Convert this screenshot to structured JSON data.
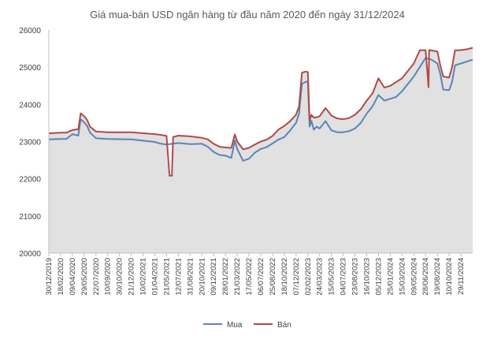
{
  "chart_data": {
    "type": "line",
    "title": "Giá mua-bán  USD ngân hàng từ đầu năm 2020  đến ngày 31/12/2024",
    "xlabel": "",
    "ylabel": "",
    "ylim": [
      20000,
      26000
    ],
    "yticks": [
      "20000",
      "21000",
      "22000",
      "23000",
      "24000",
      "25000",
      "26000"
    ],
    "x_tick_labels": [
      "30/12/2019",
      "18/02/2020",
      "09/04/2020",
      "29/05/2020",
      "22/07/2020",
      "10/09/2020",
      "30/10/2020",
      "21/12/2020",
      "10/02/2021",
      "01/04/2021",
      "21/05/2021",
      "12/07/2021",
      "31/08/2021",
      "20/10/2021",
      "09/12/2021",
      "28/01/2022",
      "21/03/2022",
      "17/05/2022",
      "06/07/2022",
      "25/08/2022",
      "18/10/2022",
      "07/12/2022",
      "02/02/2023",
      "24/03/2023",
      "15/05/2023",
      "04/07/2023",
      "23/08/2023",
      "16/10/2023",
      "05/12/2023",
      "25/01/2024",
      "15/03/2024",
      "09/05/2024",
      "28/06/2024",
      "19/08/2024",
      "10/10/2024",
      "29/11/2024"
    ],
    "grid": false,
    "legend_position": "bottom",
    "series": [
      {
        "name": "Mua",
        "color": "#5b84b5",
        "points": [
          [
            0,
            23060
          ],
          [
            2,
            23070
          ],
          [
            3,
            23070
          ],
          [
            4,
            23200
          ],
          [
            5,
            23160
          ],
          [
            5.4,
            23600
          ],
          [
            6,
            23520
          ],
          [
            6.5,
            23420
          ],
          [
            7,
            23240
          ],
          [
            8,
            23090
          ],
          [
            10,
            23070
          ],
          [
            14,
            23060
          ],
          [
            18,
            22990
          ],
          [
            19,
            22940
          ],
          [
            20,
            22920
          ],
          [
            22,
            22960
          ],
          [
            24,
            22930
          ],
          [
            26,
            22940
          ],
          [
            27,
            22860
          ],
          [
            28,
            22720
          ],
          [
            29,
            22640
          ],
          [
            30,
            22620
          ],
          [
            31,
            22560
          ],
          [
            31.6,
            23030
          ],
          [
            32,
            22800
          ],
          [
            33,
            22480
          ],
          [
            34,
            22540
          ],
          [
            35,
            22700
          ],
          [
            36,
            22800
          ],
          [
            37,
            22850
          ],
          [
            38,
            22950
          ],
          [
            39,
            23050
          ],
          [
            40,
            23120
          ],
          [
            41,
            23300
          ],
          [
            42,
            23500
          ],
          [
            42.5,
            23750
          ],
          [
            43,
            24550
          ],
          [
            43.6,
            24600
          ],
          [
            44,
            24620
          ],
          [
            44.3,
            23400
          ],
          [
            44.6,
            23560
          ],
          [
            45,
            23320
          ],
          [
            45.5,
            23400
          ],
          [
            46,
            23350
          ],
          [
            47,
            23550
          ],
          [
            48,
            23300
          ],
          [
            49,
            23250
          ],
          [
            50,
            23250
          ],
          [
            51,
            23280
          ],
          [
            52,
            23350
          ],
          [
            53,
            23500
          ],
          [
            54,
            23750
          ],
          [
            55,
            23950
          ],
          [
            55.5,
            24100
          ],
          [
            56,
            24250
          ],
          [
            57,
            24100
          ],
          [
            58,
            24150
          ],
          [
            59,
            24200
          ],
          [
            60,
            24350
          ],
          [
            61,
            24550
          ],
          [
            62,
            24750
          ],
          [
            63,
            25000
          ],
          [
            64,
            25250
          ],
          [
            65,
            25200
          ],
          [
            66,
            25100
          ],
          [
            66.5,
            24820
          ],
          [
            67,
            24400
          ],
          [
            68,
            24380
          ],
          [
            68.5,
            24600
          ],
          [
            69,
            25050
          ],
          [
            70,
            25100
          ],
          [
            71,
            25150
          ],
          [
            72,
            25200
          ]
        ]
      },
      {
        "name": "Bán",
        "color": "#b04a48",
        "points": [
          [
            0,
            23220
          ],
          [
            2,
            23240
          ],
          [
            3,
            23240
          ],
          [
            4,
            23310
          ],
          [
            5,
            23330
          ],
          [
            5.4,
            23760
          ],
          [
            6,
            23680
          ],
          [
            6.5,
            23580
          ],
          [
            7,
            23400
          ],
          [
            8,
            23270
          ],
          [
            10,
            23250
          ],
          [
            14,
            23250
          ],
          [
            18,
            23200
          ],
          [
            19,
            23180
          ],
          [
            20,
            23150
          ],
          [
            20.5,
            22080
          ],
          [
            20.9,
            22080
          ],
          [
            21.1,
            23120
          ],
          [
            22,
            23160
          ],
          [
            24,
            23140
          ],
          [
            26,
            23100
          ],
          [
            27,
            23060
          ],
          [
            28,
            22940
          ],
          [
            29,
            22860
          ],
          [
            30,
            22840
          ],
          [
            31,
            22830
          ],
          [
            31.6,
            23190
          ],
          [
            32,
            23000
          ],
          [
            33,
            22790
          ],
          [
            34,
            22830
          ],
          [
            35,
            22920
          ],
          [
            36,
            23000
          ],
          [
            37,
            23050
          ],
          [
            38,
            23150
          ],
          [
            39,
            23320
          ],
          [
            40,
            23420
          ],
          [
            41,
            23550
          ],
          [
            42,
            23720
          ],
          [
            42.5,
            23950
          ],
          [
            43,
            24850
          ],
          [
            43.6,
            24880
          ],
          [
            44,
            24870
          ],
          [
            44.3,
            23560
          ],
          [
            44.6,
            23720
          ],
          [
            45,
            23640
          ],
          [
            45.5,
            23650
          ],
          [
            46,
            23680
          ],
          [
            47,
            23900
          ],
          [
            48,
            23700
          ],
          [
            49,
            23620
          ],
          [
            50,
            23600
          ],
          [
            51,
            23630
          ],
          [
            52,
            23720
          ],
          [
            53,
            23870
          ],
          [
            54,
            24100
          ],
          [
            55,
            24300
          ],
          [
            55.5,
            24500
          ],
          [
            56,
            24700
          ],
          [
            57,
            24450
          ],
          [
            58,
            24500
          ],
          [
            59,
            24600
          ],
          [
            60,
            24700
          ],
          [
            61,
            24900
          ],
          [
            62,
            25100
          ],
          [
            63,
            25450
          ],
          [
            64,
            25460
          ],
          [
            64.5,
            24460
          ],
          [
            64.6,
            25460
          ],
          [
            65,
            25450
          ],
          [
            66,
            25420
          ],
          [
            66.5,
            25050
          ],
          [
            67,
            24750
          ],
          [
            68,
            24720
          ],
          [
            68.5,
            25000
          ],
          [
            69,
            25450
          ],
          [
            70,
            25460
          ],
          [
            71,
            25480
          ],
          [
            72,
            25520
          ]
        ]
      }
    ]
  }
}
